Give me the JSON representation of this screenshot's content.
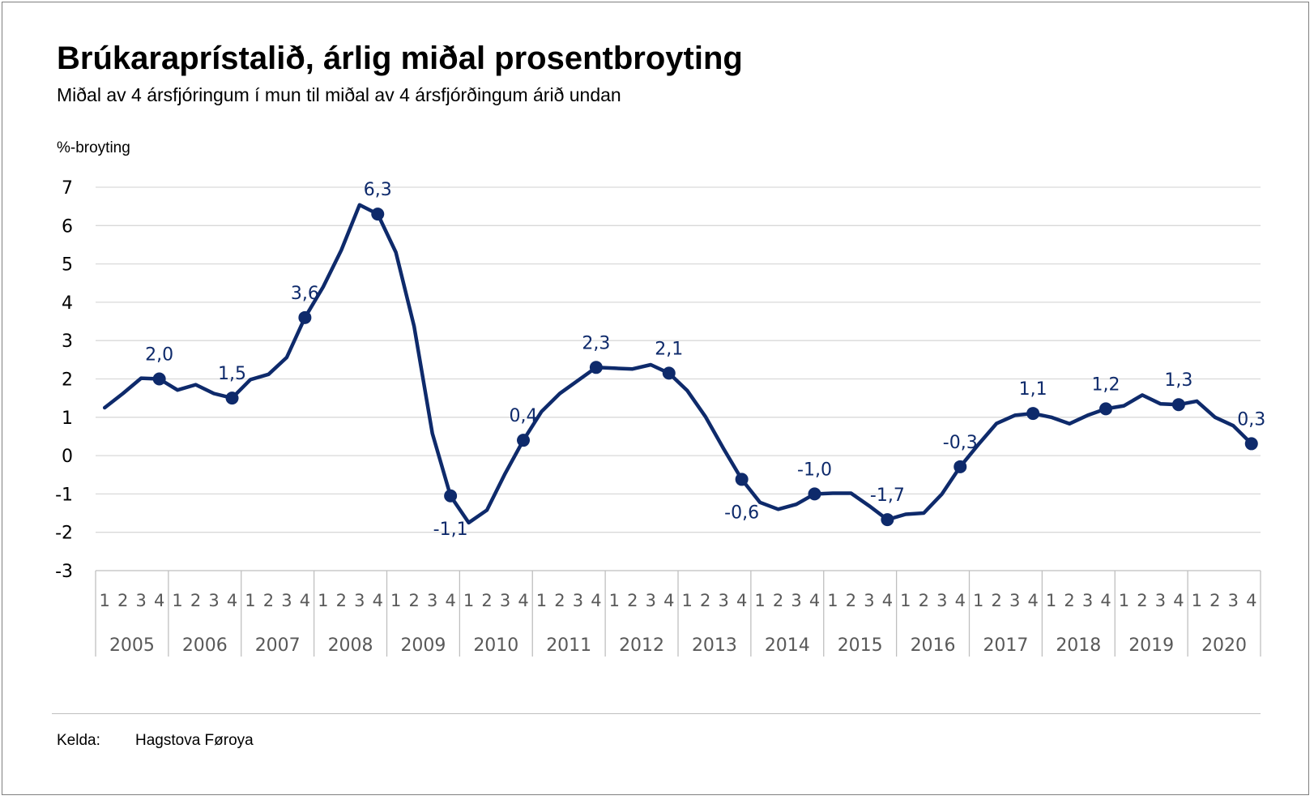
{
  "source": {
    "label": "Kelda:",
    "value": "Hagstova Føroya"
  },
  "chart_data": {
    "type": "line",
    "title": "Brúkaraprístalið, árlig miðal prosentbroyting",
    "subtitle": "Miðal av 4 ársfjóringum í mun til miðal av 4 ársfjórðingum árið undan",
    "ylabel": "%-broyting",
    "xlabel": "",
    "ylim": [
      -3,
      7
    ],
    "yticks": [
      "7",
      "6",
      "5",
      "4",
      "3",
      "2",
      "1",
      "0",
      "-1",
      "-2",
      "-3"
    ],
    "years": [
      "2005",
      "2006",
      "2007",
      "2008",
      "2009",
      "2010",
      "2011",
      "2012",
      "2013",
      "2014",
      "2015",
      "2016",
      "2017",
      "2018",
      "2019",
      "2020"
    ],
    "quarters": [
      "1",
      "2",
      "3",
      "4"
    ],
    "series": [
      {
        "name": "Brúkaraprístalið",
        "color": "#0e2a6b",
        "values": [
          1.25,
          1.62,
          2.02,
          2.0,
          1.71,
          1.85,
          1.62,
          1.5,
          1.98,
          2.12,
          2.56,
          3.6,
          4.4,
          5.36,
          6.54,
          6.3,
          5.3,
          3.37,
          0.58,
          -1.05,
          -1.75,
          -1.42,
          -0.47,
          0.4,
          1.15,
          1.62,
          1.96,
          2.3,
          2.28,
          2.26,
          2.37,
          2.15,
          1.7,
          1.02,
          0.18,
          -0.62,
          -1.22,
          -1.4,
          -1.27,
          -1.0,
          -0.98,
          -0.98,
          -1.31,
          -1.67,
          -1.53,
          -1.5,
          -1.0,
          -0.29,
          0.29,
          0.84,
          1.05,
          1.1,
          1.0,
          0.83,
          1.05,
          1.22,
          1.3,
          1.58,
          1.35,
          1.33,
          1.42,
          1.0,
          0.78,
          0.31
        ]
      }
    ],
    "labeled_points": [
      {
        "index": 3,
        "text": "2,0",
        "pos": "above"
      },
      {
        "index": 7,
        "text": "1,5",
        "pos": "above"
      },
      {
        "index": 11,
        "text": "3,6",
        "pos": "above"
      },
      {
        "index": 15,
        "text": "6,3",
        "pos": "above"
      },
      {
        "index": 19,
        "text": "-1,1",
        "pos": "below"
      },
      {
        "index": 23,
        "text": "0,4",
        "pos": "above"
      },
      {
        "index": 27,
        "text": "2,3",
        "pos": "above"
      },
      {
        "index": 31,
        "text": "2,1",
        "pos": "above"
      },
      {
        "index": 35,
        "text": "-0,6",
        "pos": "below"
      },
      {
        "index": 39,
        "text": "-1,0",
        "pos": "above"
      },
      {
        "index": 43,
        "text": "-1,7",
        "pos": "above"
      },
      {
        "index": 47,
        "text": "-0,3",
        "pos": "above"
      },
      {
        "index": 51,
        "text": "1,1",
        "pos": "above"
      },
      {
        "index": 55,
        "text": "1,2",
        "pos": "above"
      },
      {
        "index": 59,
        "text": "1,3",
        "pos": "above"
      },
      {
        "index": 63,
        "text": "0,3",
        "pos": "above"
      }
    ],
    "colors": {
      "line": "#0e2a6b",
      "grid": "#d9d9d9",
      "axis": "#bfbfbf",
      "tick_text": "#595959",
      "value_text": "#0e2a6b"
    }
  }
}
